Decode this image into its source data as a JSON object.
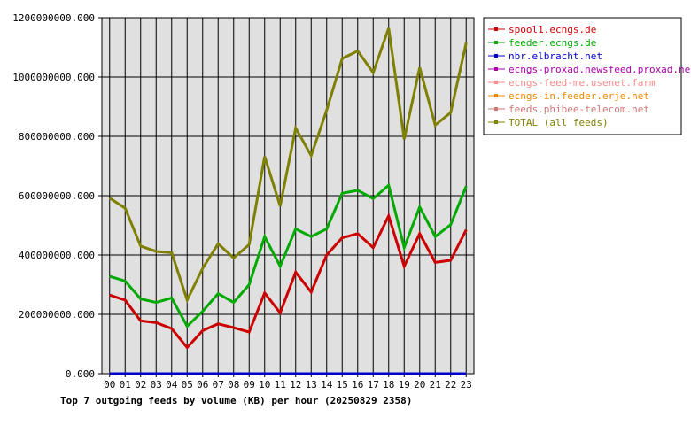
{
  "chart_data": {
    "type": "line",
    "title": "Top 7 outgoing feeds by volume (KB) per hour (20250829 2358)",
    "xlabel": "",
    "ylabel": "",
    "categories": [
      "00",
      "01",
      "02",
      "03",
      "04",
      "05",
      "06",
      "07",
      "08",
      "09",
      "10",
      "11",
      "12",
      "13",
      "14",
      "15",
      "16",
      "17",
      "18",
      "19",
      "20",
      "21",
      "22",
      "23"
    ],
    "y_ticks": [
      "0.000",
      "200000000.000",
      "400000000.000",
      "600000000.000",
      "800000000.000",
      "1000000000.000",
      "1200000000.000"
    ],
    "ylim": [
      0,
      1200000000
    ],
    "grid": true,
    "legend_position": "right",
    "series": [
      {
        "name": "spool1.ecngs.de",
        "color": "#cc0000",
        "values": [
          265000000,
          248000000,
          178000000,
          172000000,
          152000000,
          88000000,
          145000000,
          168000000,
          155000000,
          140000000,
          272000000,
          205000000,
          342000000,
          275000000,
          400000000,
          458000000,
          472000000,
          425000000,
          532000000,
          362000000,
          472000000,
          375000000,
          382000000,
          485000000
        ]
      },
      {
        "name": "feeder.ecngs.de",
        "color": "#00aa00",
        "values": [
          328000000,
          312000000,
          252000000,
          240000000,
          255000000,
          160000000,
          210000000,
          270000000,
          240000000,
          300000000,
          462000000,
          362000000,
          488000000,
          462000000,
          488000000,
          608000000,
          618000000,
          590000000,
          635000000,
          425000000,
          562000000,
          462000000,
          502000000,
          632000000
        ]
      },
      {
        "name": "nbr.elbracht.net",
        "color": "#0000cc",
        "values": [
          0,
          0,
          0,
          0,
          0,
          0,
          0,
          0,
          0,
          0,
          0,
          0,
          0,
          0,
          0,
          0,
          0,
          0,
          0,
          0,
          0,
          0,
          0,
          0
        ]
      },
      {
        "name": "ecngs-proxad.newsfeed.proxad.net",
        "color": "#aa00aa",
        "values": [
          0,
          0,
          0,
          0,
          0,
          0,
          0,
          0,
          0,
          0,
          0,
          0,
          0,
          0,
          0,
          0,
          0,
          0,
          0,
          0,
          0,
          0,
          0,
          0
        ]
      },
      {
        "name": "ecngs-feed-me.usenet.farm",
        "color": "#ff8888",
        "values": [
          0,
          0,
          0,
          0,
          0,
          0,
          0,
          0,
          0,
          0,
          0,
          0,
          0,
          0,
          0,
          0,
          0,
          0,
          0,
          0,
          0,
          0,
          0,
          0
        ]
      },
      {
        "name": "ecngs-in.feeder.erje.net",
        "color": "#ee8800",
        "values": [
          0,
          0,
          0,
          0,
          0,
          0,
          0,
          0,
          0,
          0,
          0,
          0,
          0,
          0,
          0,
          0,
          0,
          0,
          0,
          0,
          0,
          0,
          0,
          0
        ]
      },
      {
        "name": "feeds.phibee-telecom.net",
        "color": "#cc7777",
        "values": [
          0,
          0,
          0,
          0,
          0,
          0,
          0,
          0,
          0,
          0,
          0,
          0,
          0,
          0,
          0,
          0,
          0,
          0,
          0,
          0,
          0,
          0,
          0,
          0
        ]
      },
      {
        "name": "TOTAL (all feeds)",
        "color": "#808000",
        "values": [
          592000000,
          558000000,
          430000000,
          412000000,
          408000000,
          248000000,
          355000000,
          438000000,
          390000000,
          435000000,
          732000000,
          565000000,
          828000000,
          735000000,
          888000000,
          1062000000,
          1088000000,
          1015000000,
          1165000000,
          790000000,
          1032000000,
          838000000,
          880000000,
          1115000000
        ]
      }
    ]
  }
}
